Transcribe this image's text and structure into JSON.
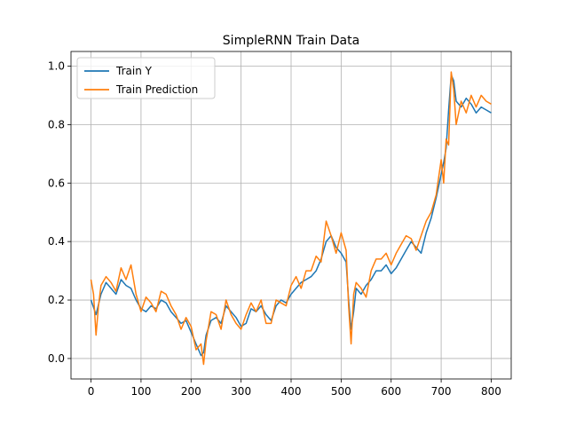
{
  "chart_data": {
    "type": "line",
    "title": "SimpleRNN Train Data",
    "xlabel": "",
    "ylabel": "",
    "xlim": [
      -40,
      840
    ],
    "ylim": [
      -0.07,
      1.05
    ],
    "xticks": [
      0,
      100,
      200,
      300,
      400,
      500,
      600,
      700,
      800
    ],
    "yticks": [
      0.0,
      0.2,
      0.4,
      0.6,
      0.8,
      1.0
    ],
    "grid": true,
    "legend_position": "top-left",
    "series": [
      {
        "name": "Train Y",
        "color": "#1f77b4",
        "x": [
          0,
          10,
          20,
          30,
          40,
          50,
          60,
          70,
          80,
          90,
          100,
          110,
          120,
          130,
          140,
          150,
          160,
          170,
          180,
          190,
          200,
          210,
          220,
          225,
          230,
          240,
          250,
          260,
          270,
          280,
          290,
          300,
          310,
          320,
          330,
          340,
          350,
          360,
          370,
          380,
          390,
          400,
          410,
          420,
          430,
          440,
          450,
          460,
          470,
          480,
          490,
          500,
          510,
          515,
          520,
          525,
          530,
          540,
          550,
          560,
          570,
          580,
          590,
          600,
          610,
          620,
          630,
          640,
          650,
          660,
          670,
          680,
          690,
          700,
          705,
          710,
          715,
          720,
          725,
          730,
          740,
          750,
          760,
          770,
          780,
          790,
          800
        ],
        "y": [
          0.2,
          0.15,
          0.22,
          0.26,
          0.24,
          0.22,
          0.27,
          0.25,
          0.24,
          0.2,
          0.17,
          0.16,
          0.18,
          0.17,
          0.2,
          0.19,
          0.16,
          0.14,
          0.12,
          0.13,
          0.09,
          0.05,
          0.01,
          0.02,
          0.08,
          0.13,
          0.14,
          0.12,
          0.18,
          0.16,
          0.14,
          0.11,
          0.12,
          0.17,
          0.16,
          0.18,
          0.15,
          0.13,
          0.18,
          0.2,
          0.19,
          0.22,
          0.24,
          0.26,
          0.27,
          0.28,
          0.3,
          0.34,
          0.4,
          0.42,
          0.38,
          0.36,
          0.33,
          0.2,
          0.1,
          0.16,
          0.24,
          0.22,
          0.25,
          0.27,
          0.3,
          0.3,
          0.32,
          0.29,
          0.31,
          0.34,
          0.37,
          0.4,
          0.38,
          0.36,
          0.43,
          0.48,
          0.55,
          0.63,
          0.67,
          0.72,
          0.85,
          0.97,
          0.95,
          0.88,
          0.86,
          0.89,
          0.87,
          0.84,
          0.86,
          0.85,
          0.84
        ]
      },
      {
        "name": "Train Prediction",
        "color": "#ff7f0e",
        "x": [
          0,
          5,
          10,
          15,
          20,
          30,
          40,
          50,
          60,
          70,
          80,
          90,
          100,
          110,
          120,
          130,
          140,
          150,
          160,
          170,
          180,
          190,
          200,
          210,
          220,
          225,
          230,
          240,
          250,
          260,
          270,
          280,
          290,
          300,
          310,
          320,
          330,
          340,
          350,
          360,
          370,
          380,
          390,
          400,
          410,
          420,
          430,
          440,
          450,
          460,
          470,
          480,
          490,
          500,
          510,
          515,
          520,
          525,
          530,
          540,
          550,
          560,
          570,
          580,
          590,
          600,
          610,
          620,
          630,
          640,
          650,
          660,
          670,
          680,
          690,
          700,
          705,
          710,
          715,
          720,
          725,
          730,
          740,
          750,
          760,
          770,
          780,
          790,
          800
        ],
        "y": [
          0.27,
          0.22,
          0.08,
          0.18,
          0.25,
          0.28,
          0.26,
          0.23,
          0.31,
          0.27,
          0.32,
          0.22,
          0.16,
          0.21,
          0.19,
          0.16,
          0.23,
          0.22,
          0.18,
          0.15,
          0.1,
          0.14,
          0.11,
          0.03,
          0.05,
          -0.02,
          0.06,
          0.16,
          0.15,
          0.1,
          0.2,
          0.15,
          0.12,
          0.1,
          0.15,
          0.19,
          0.16,
          0.2,
          0.12,
          0.12,
          0.2,
          0.19,
          0.18,
          0.25,
          0.28,
          0.24,
          0.3,
          0.3,
          0.35,
          0.33,
          0.47,
          0.42,
          0.36,
          0.43,
          0.37,
          0.18,
          0.05,
          0.22,
          0.26,
          0.24,
          0.21,
          0.3,
          0.34,
          0.34,
          0.36,
          0.32,
          0.36,
          0.39,
          0.42,
          0.41,
          0.37,
          0.42,
          0.47,
          0.5,
          0.56,
          0.68,
          0.6,
          0.75,
          0.73,
          0.98,
          0.92,
          0.8,
          0.88,
          0.84,
          0.9,
          0.86,
          0.9,
          0.88,
          0.87
        ]
      }
    ]
  }
}
